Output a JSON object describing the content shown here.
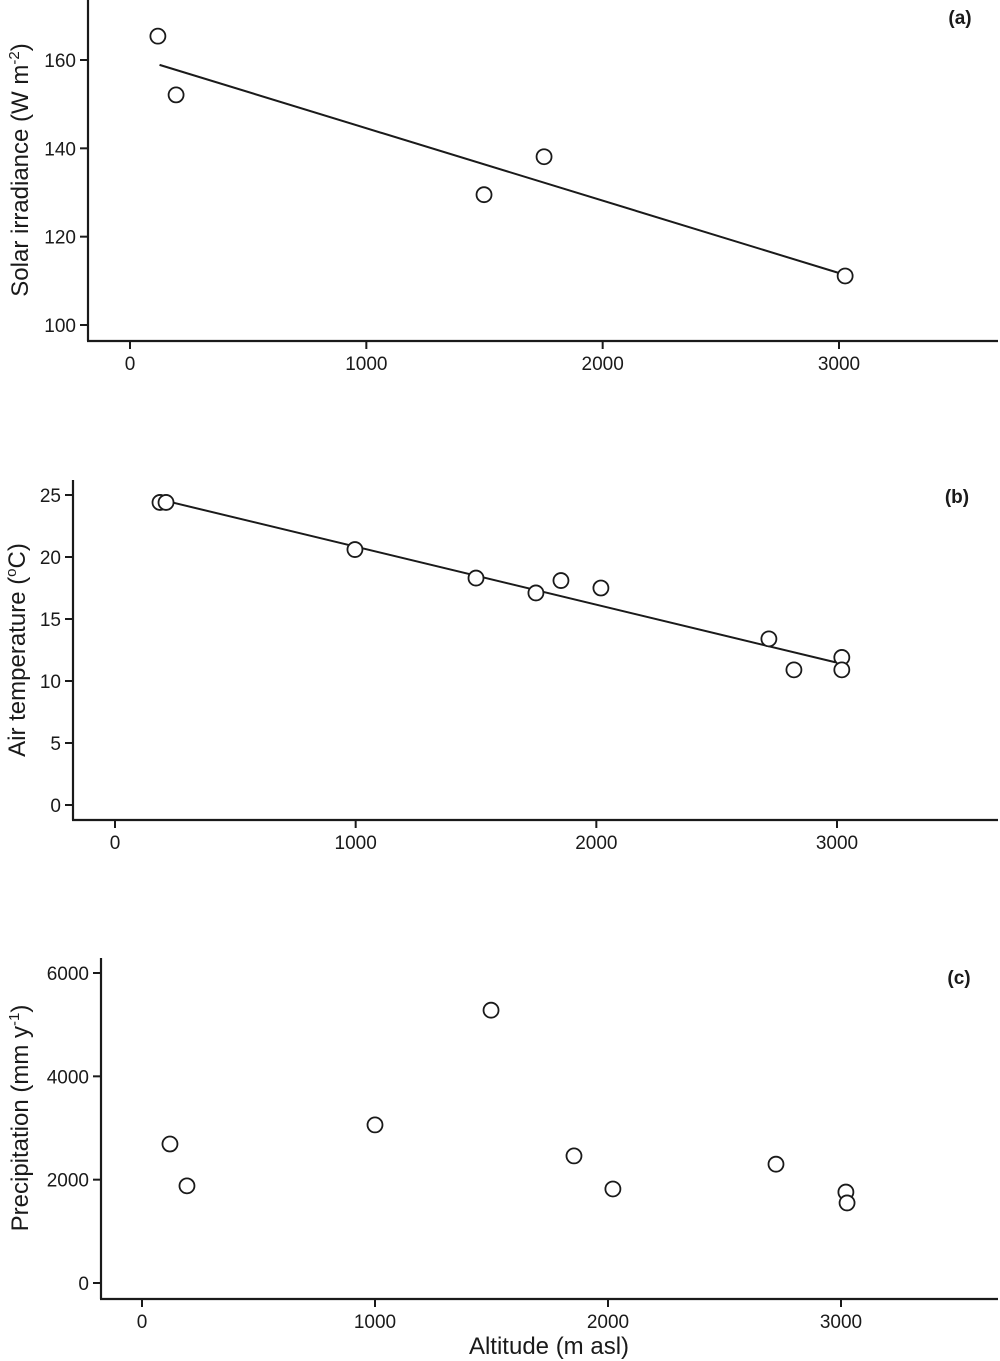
{
  "figure": {
    "x_axis_shared_label": "Altitude (m asl)"
  },
  "chart_data": [
    {
      "type": "scatter",
      "panel_label": "(a)",
      "title": "",
      "xlabel": "",
      "ylabel": "Solar irradiance (W m-2)",
      "ylabel_main": "Solar irradiance (W m",
      "ylabel_sup": "-2",
      "ylabel_close": ")",
      "x_ticks": [
        0,
        1000,
        2000,
        3000
      ],
      "y_ticks": [
        100,
        120,
        140,
        160
      ],
      "xlim": [
        -180,
        3650
      ],
      "ylim": [
        96.5,
        175
      ],
      "grid": false,
      "legend": null,
      "x": [
        118,
        195,
        1498,
        1752,
        3026
      ],
      "y": [
        165.4,
        152.1,
        129.5,
        138.1,
        111.1
      ],
      "fit_line": {
        "x": [
          125,
          3010
        ],
        "y": [
          158.9,
          111.6
        ]
      }
    },
    {
      "type": "scatter",
      "panel_label": "(b)",
      "title": "",
      "xlabel": "",
      "ylabel": "Air temperature (oC)",
      "ylabel_main": "Air temperature (",
      "ylabel_sup": "o",
      "ylabel_close": "C)",
      "x_ticks": [
        0,
        1000,
        2000,
        3000
      ],
      "y_ticks": [
        0,
        5,
        10,
        15,
        20,
        25
      ],
      "xlim": [
        -175,
        3650
      ],
      "ylim": [
        -1.2,
        27
      ],
      "grid": false,
      "legend": null,
      "x": [
        187,
        212,
        997,
        1500,
        1749,
        1853,
        2019,
        2717,
        2821,
        3020,
        3020
      ],
      "y": [
        24.4,
        24.4,
        20.6,
        18.3,
        17.1,
        18.1,
        17.5,
        13.4,
        10.9,
        11.9,
        10.9
      ],
      "fit_line": {
        "x": [
          195,
          2995
        ],
        "y": [
          24.6,
          11.5
        ]
      }
    },
    {
      "type": "scatter",
      "panel_label": "(c)",
      "title": "",
      "xlabel": "Altitude (m asl)",
      "ylabel": "Precipitation (mm y-1)",
      "ylabel_main": "Precipitation (mm y",
      "ylabel_sup": "-1",
      "ylabel_close": ")",
      "x_ticks": [
        0,
        1000,
        2000,
        3000
      ],
      "y_ticks": [
        0,
        2000,
        4000,
        6000
      ],
      "xlim": [
        -175,
        3650
      ],
      "ylim": [
        -310,
        6300
      ],
      "grid": false,
      "legend": null,
      "x": [
        120,
        193,
        1000,
        1498,
        1854,
        2021,
        2721,
        3021,
        3026
      ],
      "y": [
        2690,
        1880,
        3060,
        5280,
        2460,
        1820,
        2300,
        1760,
        1550
      ],
      "fit_line": null
    }
  ]
}
